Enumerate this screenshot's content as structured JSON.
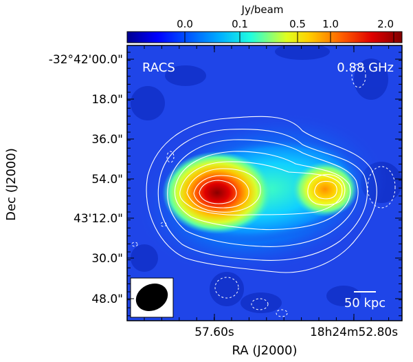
{
  "chart_data": {
    "type": "heatmap",
    "title": "",
    "colorbar": {
      "label": "Jy/beam",
      "tick_labels": [
        "0.0",
        "0.1",
        "0.5",
        "1.0",
        "2.0"
      ],
      "tick_fractions": [
        0.21,
        0.41,
        0.62,
        0.74,
        0.97
      ],
      "colormap": "jet",
      "scale": "nonlinear (sqrt-like stretch)"
    },
    "xlabel": "RA (J2000)",
    "ylabel": "Dec (J2000)",
    "x_tick_labels": [
      "57.60s",
      "18h24m52.80s"
    ],
    "y_tick_labels": [
      "-32°42'00.0\"",
      "18.0\"",
      "36.0\"",
      "54.0\"",
      "43'12.0\"",
      "30.0\"",
      "48.0\""
    ],
    "annotations": {
      "survey": "RACS",
      "frequency": "0.88 GHz",
      "scalebar": "50 kpc"
    },
    "sources": [
      {
        "component": "eastern peak",
        "relative_peak": 1.0
      },
      {
        "component": "western peak",
        "relative_peak": 0.55
      }
    ],
    "contours": {
      "solid_color": "#ffffff",
      "negative_style": "dashed",
      "levels_count": 8
    },
    "grid": false
  },
  "colors": {
    "background_map": "#1f45e8",
    "contour": "#ffffff",
    "beam": "#000000"
  }
}
